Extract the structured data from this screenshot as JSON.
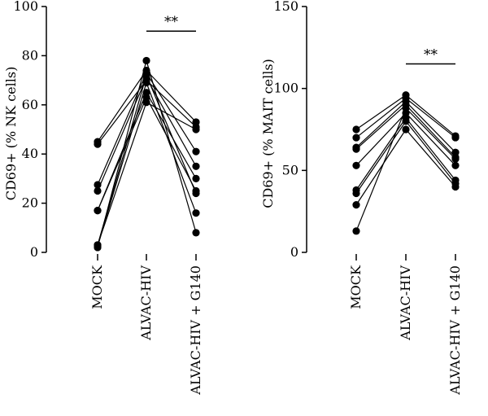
{
  "chart_data": [
    {
      "type": "scatter",
      "style": "paired-connected",
      "categories": [
        "MOCK",
        "ALVAC-HIV",
        "ALVAC-HIV + G140"
      ],
      "ylabel": "CD69+ (% NK cells)",
      "ylim": [
        0,
        100
      ],
      "yticks": [
        0,
        20,
        40,
        60,
        80,
        100
      ],
      "grid": false,
      "subjects": [
        [
          45,
          74,
          53
        ],
        [
          44,
          70,
          51
        ],
        [
          27.5,
          73,
          41
        ],
        [
          25,
          71,
          35
        ],
        [
          17,
          65,
          30
        ],
        [
          17,
          63,
          25
        ],
        [
          3,
          72,
          24
        ],
        [
          2.5,
          69,
          16
        ],
        [
          2,
          78,
          8
        ],
        [
          3,
          61,
          50
        ]
      ],
      "significance": {
        "text": "**",
        "between": [
          1,
          2
        ],
        "y": 90
      }
    },
    {
      "type": "scatter",
      "style": "paired-connected",
      "categories": [
        "MOCK",
        "ALVAC-HIV",
        "ALVAC-HIV + G140"
      ],
      "ylabel": "CD69+ (% MAIT cells)",
      "ylim": [
        0,
        150
      ],
      "yticks": [
        0,
        50,
        100,
        150
      ],
      "grid": false,
      "subjects": [
        [
          75,
          96,
          71
        ],
        [
          70,
          94,
          70
        ],
        [
          64,
          92,
          61
        ],
        [
          63,
          90,
          58
        ],
        [
          53,
          85,
          53
        ],
        [
          38,
          82,
          44
        ],
        [
          36,
          80,
          42
        ],
        [
          29,
          75,
          40
        ],
        [
          13,
          88,
          57
        ]
      ],
      "significance": {
        "text": "**",
        "between": [
          1,
          2
        ],
        "y": 115
      }
    }
  ]
}
